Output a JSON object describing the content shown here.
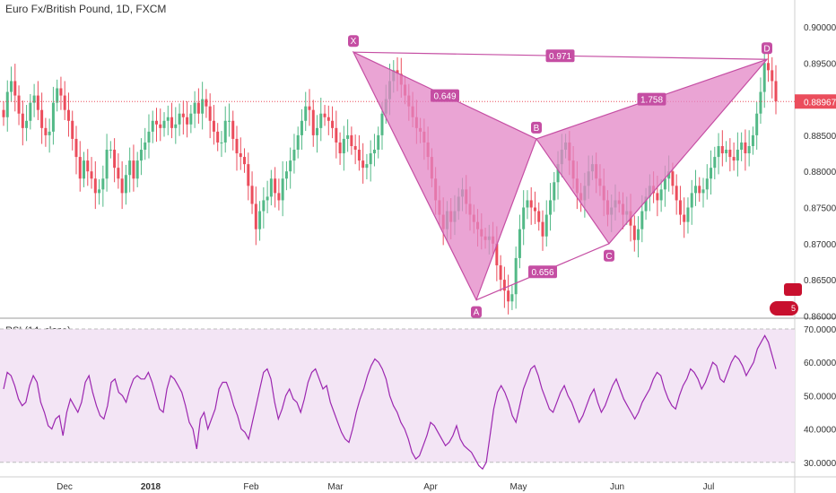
{
  "header": {
    "title": "Euro Fx/British Pound, 1D, FXCM"
  },
  "rsi": {
    "title": "RSI (14, close)"
  },
  "badge": {
    "count": "5"
  },
  "colors": {
    "up": "#26a69a",
    "up_light": "#53b987",
    "down": "#ef5350",
    "down_light": "#eb4d5c",
    "pattern_fill": "#e386c6",
    "pattern_stroke": "#c54ea3",
    "pattern_label_bg": "#c54ea3",
    "rsi_line": "#9c27b0",
    "rsi_band": "#f3e5f5",
    "price_line": "#eb4d5c"
  },
  "chart_data": [
    {
      "type": "candlestick",
      "title": "Euro Fx/British Pound, 1D, FXCM",
      "ylim": [
        0.86,
        0.905
      ],
      "yticks": [
        "0.90000",
        "0.89500",
        "0.89000",
        "0.88500",
        "0.88000",
        "0.87500",
        "0.87000",
        "0.86500",
        "0.86000"
      ],
      "xticks": [
        "Dec",
        "2018",
        "Feb",
        "Mar",
        "Apr",
        "May",
        "Jun",
        "Jul"
      ],
      "last_price": "0.88967",
      "close_series": [
        0.8875,
        0.891,
        0.8925,
        0.8905,
        0.888,
        0.886,
        0.887,
        0.8895,
        0.8905,
        0.8885,
        0.886,
        0.885,
        0.8855,
        0.8895,
        0.8915,
        0.8905,
        0.8885,
        0.887,
        0.8845,
        0.882,
        0.879,
        0.8815,
        0.88,
        0.879,
        0.877,
        0.8775,
        0.879,
        0.883,
        0.883,
        0.8805,
        0.879,
        0.877,
        0.8795,
        0.8815,
        0.879,
        0.8815,
        0.883,
        0.884,
        0.8855,
        0.887,
        0.8865,
        0.886,
        0.887,
        0.8875,
        0.886,
        0.8865,
        0.888,
        0.8875,
        0.8865,
        0.888,
        0.8895,
        0.888,
        0.89,
        0.889,
        0.887,
        0.8855,
        0.884,
        0.884,
        0.887,
        0.887,
        0.8845,
        0.8825,
        0.882,
        0.881,
        0.878,
        0.8755,
        0.872,
        0.8745,
        0.876,
        0.8765,
        0.879,
        0.877,
        0.876,
        0.879,
        0.88,
        0.8815,
        0.883,
        0.885,
        0.887,
        0.889,
        0.8885,
        0.885,
        0.886,
        0.888,
        0.8875,
        0.887,
        0.886,
        0.884,
        0.8825,
        0.8845,
        0.885,
        0.8835,
        0.883,
        0.8815,
        0.8805,
        0.881,
        0.8825,
        0.883,
        0.885,
        0.888,
        0.89,
        0.8925,
        0.894,
        0.8935,
        0.892,
        0.8905,
        0.889,
        0.8875,
        0.886,
        0.8855,
        0.884,
        0.882,
        0.879,
        0.876,
        0.874,
        0.872,
        0.8745,
        0.873,
        0.8745,
        0.8765,
        0.8775,
        0.8755,
        0.874,
        0.873,
        0.872,
        0.871,
        0.8705,
        0.871,
        0.87,
        0.867,
        0.865,
        0.8635,
        0.862,
        0.863,
        0.868,
        0.872,
        0.875,
        0.876,
        0.875,
        0.8745,
        0.873,
        0.871,
        0.874,
        0.876,
        0.8785,
        0.881,
        0.883,
        0.884,
        0.8815,
        0.879,
        0.877,
        0.876,
        0.878,
        0.88,
        0.881,
        0.879,
        0.878,
        0.876,
        0.874,
        0.875,
        0.876,
        0.8755,
        0.874,
        0.8745,
        0.8725,
        0.8705,
        0.872,
        0.8745,
        0.8765,
        0.878,
        0.877,
        0.876,
        0.8775,
        0.879,
        0.88,
        0.878,
        0.876,
        0.874,
        0.873,
        0.875,
        0.877,
        0.878,
        0.877,
        0.8775,
        0.879,
        0.8805,
        0.882,
        0.8835,
        0.8825,
        0.883,
        0.882,
        0.8815,
        0.883,
        0.884,
        0.8825,
        0.8835,
        0.885,
        0.888,
        0.891,
        0.895,
        0.894,
        0.8925,
        0.8897
      ],
      "harmonic_pattern": {
        "points": [
          {
            "label": "X",
            "date": "Mar 5",
            "price": 0.8965
          },
          {
            "label": "A",
            "date": "Apr 17",
            "price": 0.8622
          },
          {
            "label": "B",
            "date": "May 7",
            "price": 0.8845
          },
          {
            "label": "C",
            "date": "May 29",
            "price": 0.87
          },
          {
            "label": "D",
            "date": "Jul 19",
            "price": 0.8955
          }
        ],
        "ratios": [
          {
            "segment": "XB",
            "value": "0.649"
          },
          {
            "segment": "XD",
            "value": "0.971"
          },
          {
            "segment": "BD",
            "value": "1.758"
          },
          {
            "segment": "AC",
            "value": "0.656"
          }
        ]
      }
    },
    {
      "type": "line",
      "title": "RSI (14, close)",
      "ylim": [
        27,
        71
      ],
      "yticks": [
        "70.0000",
        "60.0000",
        "50.0000",
        "40.0000",
        "30.0000"
      ],
      "bands": [
        30,
        70
      ],
      "values": [
        52,
        57,
        56,
        53,
        49,
        47,
        48,
        53,
        56,
        54,
        48,
        45,
        41,
        40,
        43,
        44,
        38,
        45,
        49,
        47,
        45,
        48,
        54,
        56,
        51,
        47,
        44,
        43,
        47,
        54,
        55,
        51,
        50,
        48,
        52,
        55,
        56,
        55,
        55,
        57,
        54,
        50,
        46,
        45,
        52,
        56,
        55,
        53,
        51,
        47,
        42,
        40,
        34,
        43,
        45,
        40,
        43,
        46,
        52,
        54,
        54,
        51,
        47,
        44,
        40,
        39,
        37,
        42,
        47,
        52,
        57,
        58,
        55,
        48,
        43,
        46,
        50,
        52,
        49,
        48,
        45,
        49,
        54,
        57,
        58,
        55,
        52,
        53,
        48,
        45,
        42,
        39,
        37,
        36,
        40,
        45,
        49,
        52,
        56,
        59,
        61,
        60,
        58,
        55,
        50,
        47,
        45,
        42,
        40,
        37,
        33,
        31,
        32,
        35,
        38,
        42,
        41,
        39,
        37,
        35,
        36,
        38,
        41,
        37,
        35,
        34,
        33,
        31,
        29,
        28,
        30,
        38,
        46,
        51,
        53,
        51,
        48,
        44,
        42,
        47,
        52,
        55,
        58,
        59,
        56,
        52,
        49,
        46,
        45,
        48,
        51,
        53,
        50,
        48,
        45,
        42,
        44,
        47,
        50,
        52,
        48,
        45,
        47,
        50,
        53,
        55,
        52,
        49,
        47,
        45,
        43,
        45,
        48,
        50,
        52,
        55,
        57,
        56,
        52,
        49,
        47,
        46,
        50,
        53,
        55,
        58,
        57,
        55,
        52,
        54,
        57,
        60,
        59,
        55,
        54,
        57,
        60,
        62,
        61,
        59,
        56,
        58,
        60,
        64,
        66,
        68,
        66,
        62,
        58
      ]
    }
  ]
}
